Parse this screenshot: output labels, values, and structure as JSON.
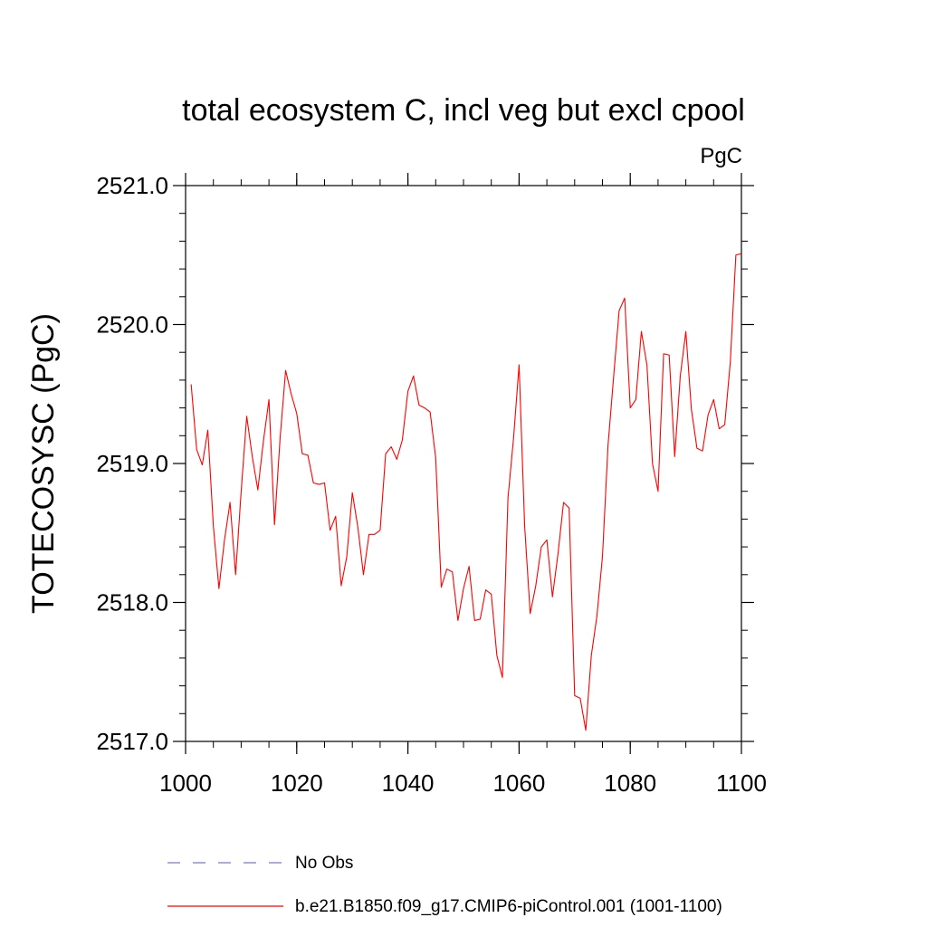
{
  "chart_data": {
    "type": "line",
    "title": "total ecosystem C, incl veg but excl cpool",
    "units_label": "PgC",
    "xlabel": "",
    "ylabel": "TOTECOSYSC  (PgC)",
    "xlim": [
      1000,
      1100
    ],
    "ylim": [
      2517.0,
      2521.0
    ],
    "x_ticks": [
      1000,
      1020,
      1040,
      1060,
      1080,
      1100
    ],
    "x_tick_labels": [
      "1000",
      "1020",
      "1040",
      "1060",
      "1080",
      "1100"
    ],
    "y_ticks": [
      2517.0,
      2518.0,
      2519.0,
      2520.0,
      2521.0
    ],
    "y_tick_labels": [
      "2517.0",
      "2518.0",
      "2519.0",
      "2520.0",
      "2521.0"
    ],
    "y_minor_step": 0.2,
    "x_minor_step": 5,
    "grid": false,
    "series": [
      {
        "name": "b.e21.B1850.f09_g17.CMIP6-piControl.001 (1001-1100)",
        "color": "#ff0000",
        "style": "solid",
        "x": [
          1001,
          1002,
          1003,
          1004,
          1005,
          1006,
          1007,
          1008,
          1009,
          1010,
          1011,
          1012,
          1013,
          1014,
          1015,
          1016,
          1017,
          1018,
          1019,
          1020,
          1021,
          1022,
          1023,
          1024,
          1025,
          1026,
          1027,
          1028,
          1029,
          1030,
          1031,
          1032,
          1033,
          1034,
          1035,
          1036,
          1037,
          1038,
          1039,
          1040,
          1041,
          1042,
          1043,
          1044,
          1045,
          1046,
          1047,
          1048,
          1049,
          1050,
          1051,
          1052,
          1053,
          1054,
          1055,
          1056,
          1057,
          1058,
          1059,
          1060,
          1061,
          1062,
          1063,
          1064,
          1065,
          1066,
          1067,
          1068,
          1069,
          1070,
          1071,
          1072,
          1073,
          1074,
          1075,
          1076,
          1077,
          1078,
          1079,
          1080,
          1081,
          1082,
          1083,
          1084,
          1085,
          1086,
          1087,
          1088,
          1089,
          1090,
          1091,
          1092,
          1093,
          1094,
          1095,
          1096,
          1097,
          1098,
          1099,
          1100
        ],
        "values": [
          2519.57,
          2519.1,
          2518.99,
          2519.24,
          2518.55,
          2518.1,
          2518.45,
          2518.72,
          2518.2,
          2518.8,
          2519.34,
          2519.05,
          2518.81,
          2519.16,
          2519.46,
          2518.56,
          2519.18,
          2519.67,
          2519.5,
          2519.36,
          2519.07,
          2519.06,
          2518.86,
          2518.85,
          2518.86,
          2518.52,
          2518.62,
          2518.12,
          2518.33,
          2518.79,
          2518.54,
          2518.2,
          2518.49,
          2518.49,
          2518.52,
          2519.07,
          2519.12,
          2519.03,
          2519.17,
          2519.52,
          2519.63,
          2519.42,
          2519.4,
          2519.37,
          2519.04,
          2518.11,
          2518.24,
          2518.22,
          2517.87,
          2518.1,
          2518.26,
          2517.87,
          2517.88,
          2518.09,
          2518.06,
          2517.62,
          2517.46,
          2518.75,
          2519.18,
          2519.71,
          2518.55,
          2517.92,
          2518.12,
          2518.4,
          2518.45,
          2518.04,
          2518.35,
          2518.72,
          2518.68,
          2517.33,
          2517.31,
          2517.08,
          2517.62,
          2517.9,
          2518.33,
          2519.13,
          2519.62,
          2520.1,
          2520.19,
          2519.4,
          2519.46,
          2519.95,
          2519.71,
          2519.0,
          2518.8,
          2519.79,
          2519.78,
          2519.05,
          2519.63,
          2519.95,
          2519.39,
          2519.11,
          2519.09,
          2519.35,
          2519.46,
          2519.25,
          2519.28,
          2519.73,
          2520.5,
          2520.51
        ]
      }
    ],
    "legend": {
      "placement": "bottom",
      "entries": [
        {
          "label": "No Obs",
          "color": "#7b7bc8",
          "style": "dashed"
        },
        {
          "label": "b.e21.B1850.f09_g17.CMIP6-piControl.001 (1001-1100)",
          "color": "#ff0000",
          "style": "solid"
        }
      ]
    }
  }
}
